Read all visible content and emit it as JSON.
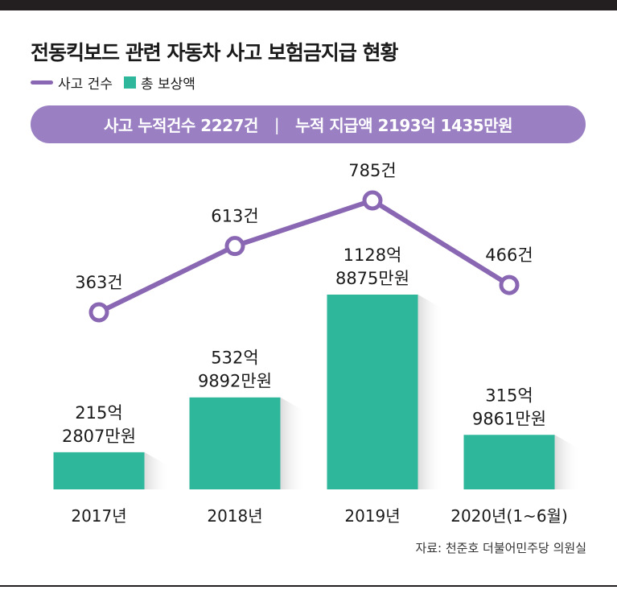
{
  "title": "전동킥보드 관련 자동차 사고 보험금지급 현황",
  "legend": {
    "line_label": "사고 건수",
    "bar_label": "총 보상액"
  },
  "summary": {
    "left": "사고 누적건수 2227건",
    "separator": "|",
    "right": "누적 지급액 2193억 1435만원"
  },
  "source": "자료: 천준호 더불어민주당 의원실",
  "colors": {
    "bar": "#2fb79c",
    "line": "#8a67b3",
    "banner": "#9a7fc2"
  },
  "chart_data": {
    "type": "bar",
    "categories": [
      "2017년",
      "2018년",
      "2019년",
      "2020년(1~6월)"
    ],
    "series": [
      {
        "name": "총 보상액",
        "type": "bar",
        "unit": "만원",
        "values": [
          2152807,
          5329892,
          11288875,
          3159861
        ],
        "labels": [
          [
            "215억",
            "2807만원"
          ],
          [
            "532억",
            "9892만원"
          ],
          [
            "1128억",
            "8875만원"
          ],
          [
            "315억",
            "9861만원"
          ]
        ]
      },
      {
        "name": "사고 건수",
        "type": "line",
        "unit": "건",
        "values": [
          363,
          613,
          785,
          466
        ],
        "labels": [
          "363건",
          "613건",
          "785건",
          "466건"
        ]
      }
    ]
  }
}
